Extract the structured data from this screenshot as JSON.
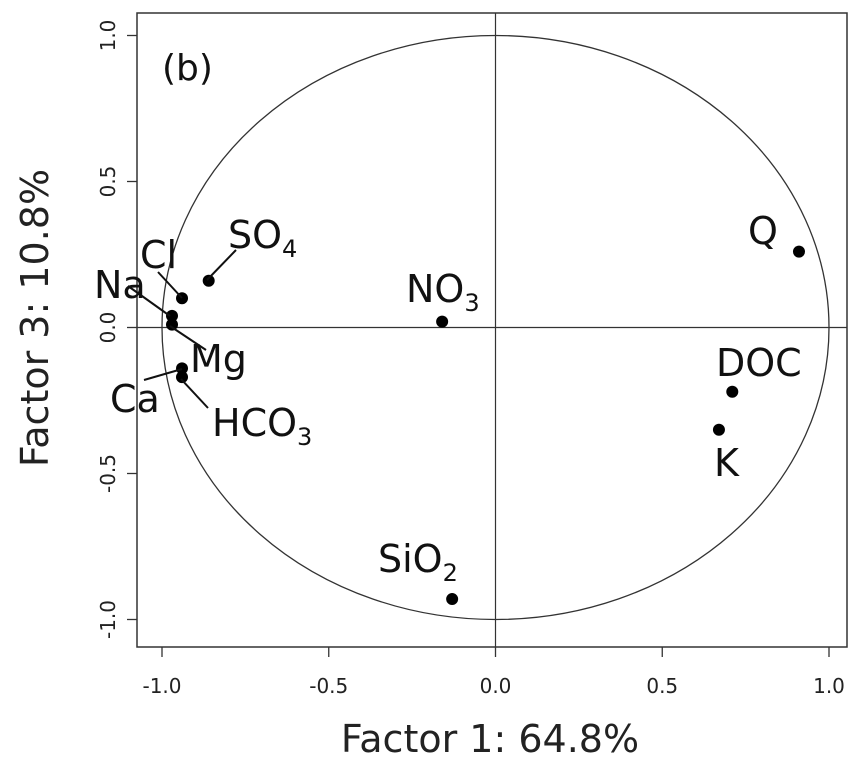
{
  "chart_data": {
    "type": "scatter",
    "title": "",
    "panel_label": "(b)",
    "xlabel": "Factor 1: 64.8%",
    "ylabel": "Factor 3: 10.8%",
    "xlim": [
      -1.05,
      1.05
    ],
    "ylim": [
      -1.1,
      1.07
    ],
    "xticks": [
      -1.0,
      -0.5,
      0.0,
      0.5,
      1.0
    ],
    "xtick_labels": [
      "-1.0",
      "-0.5",
      "0.0",
      "0.5",
      "1.0"
    ],
    "yticks": [
      -1.0,
      -0.5,
      0.0,
      0.5,
      1.0
    ],
    "ytick_labels": [
      "-1.0",
      "-0.5",
      "0.0",
      "0.5",
      "1.0"
    ],
    "unit_circle": true,
    "reference_lines": {
      "x": 0,
      "y": 0
    },
    "grid": false,
    "legend": "none",
    "points": [
      {
        "name": "SO4",
        "label": "SO",
        "sub": "4",
        "x": -0.86,
        "y": 0.16
      },
      {
        "name": "Cl",
        "label": "Cl",
        "sub": "",
        "x": -0.94,
        "y": 0.1
      },
      {
        "name": "Na",
        "label": "Na",
        "sub": "",
        "x": -0.97,
        "y": 0.04
      },
      {
        "name": "Mg",
        "label": "Mg",
        "sub": "",
        "x": -0.97,
        "y": 0.01
      },
      {
        "name": "Ca",
        "label": "Ca",
        "sub": "",
        "x": -0.94,
        "y": -0.14
      },
      {
        "name": "HCO3",
        "label": "HCO",
        "sub": "3",
        "x": -0.94,
        "y": -0.17
      },
      {
        "name": "NO3",
        "label": "NO",
        "sub": "3",
        "x": -0.16,
        "y": 0.02
      },
      {
        "name": "SiO2",
        "label": "SiO",
        "sub": "2",
        "x": -0.13,
        "y": -0.93
      },
      {
        "name": "Q",
        "label": "Q",
        "sub": "",
        "x": 0.91,
        "y": 0.26
      },
      {
        "name": "DOC",
        "label": "DOC",
        "sub": "",
        "x": 0.71,
        "y": -0.22
      },
      {
        "name": "K",
        "label": "K",
        "sub": "",
        "x": 0.67,
        "y": -0.35
      }
    ]
  }
}
